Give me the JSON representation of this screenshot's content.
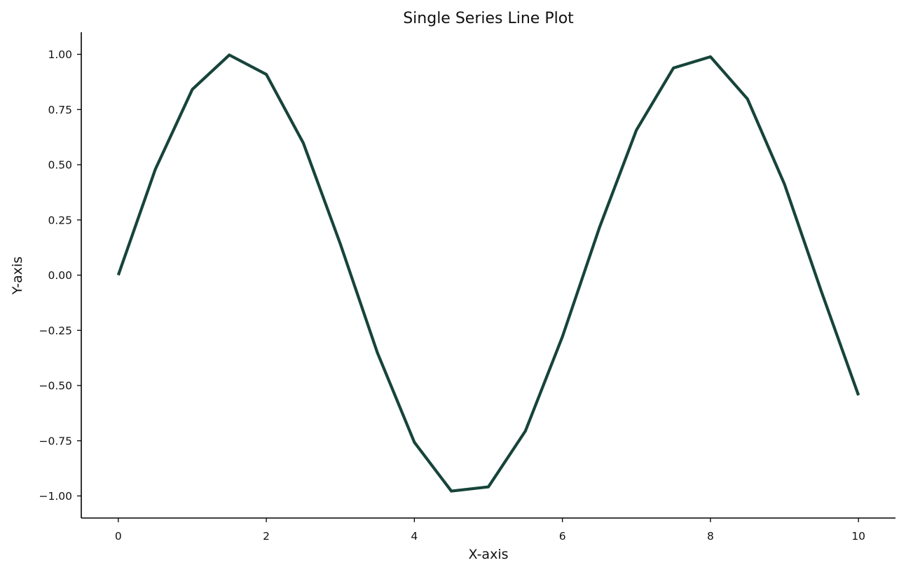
{
  "chart_data": {
    "type": "line",
    "title": "Single Series Line Plot",
    "xlabel": "X-axis",
    "ylabel": "Y-axis",
    "xlim": [
      -0.5,
      10.5
    ],
    "ylim": [
      -1.1,
      1.1
    ],
    "x_ticks": [
      0,
      2,
      4,
      6,
      8,
      10
    ],
    "x_tick_labels": [
      "0",
      "2",
      "4",
      "6",
      "8",
      "10"
    ],
    "y_ticks": [
      1.0,
      0.75,
      0.5,
      0.25,
      0.0,
      -0.25,
      -0.5,
      -0.75,
      -1.0
    ],
    "y_tick_labels": [
      "1.00",
      "0.75",
      "0.50",
      "0.25",
      "0.00",
      "−0.25",
      "−0.50",
      "−0.75",
      "−1.00"
    ],
    "grid": false,
    "series": [
      {
        "color": "#17443a",
        "x": [
          0,
          0.5,
          1,
          1.5,
          2,
          2.5,
          3,
          3.5,
          4,
          4.5,
          5,
          5.5,
          6,
          6.5,
          7,
          7.5,
          8,
          8.5,
          9,
          9.5,
          10
        ],
        "y": [
          0.0,
          0.479,
          0.841,
          0.997,
          0.909,
          0.598,
          0.141,
          -0.351,
          -0.757,
          -0.978,
          -0.959,
          -0.706,
          -0.279,
          0.215,
          0.657,
          0.938,
          0.989,
          0.798,
          0.412,
          -0.075,
          -0.544
        ]
      }
    ]
  }
}
